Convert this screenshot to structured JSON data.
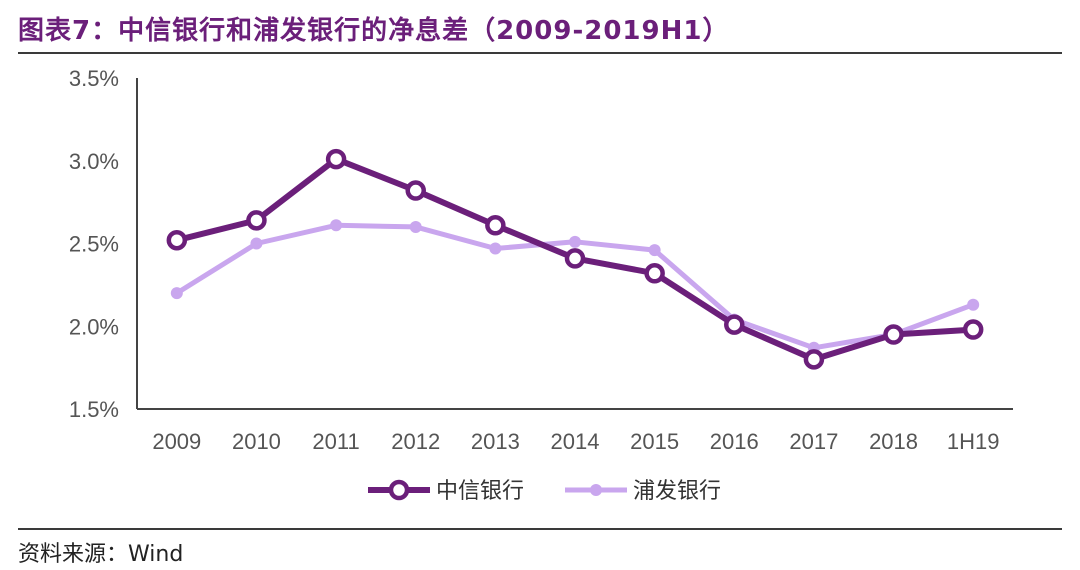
{
  "title": "图表7：中信银行和浦发银行的净息差（2009-2019H1）",
  "source": "资料来源：Wind",
  "colors": {
    "series1": "#6b1f7a",
    "series2": "#c9a6ee",
    "axis": "#444444",
    "title": "#6b1f7a"
  },
  "chart_data": {
    "type": "line",
    "title": "",
    "xlabel": "",
    "ylabel": "",
    "categories": [
      "2009",
      "2010",
      "2011",
      "2012",
      "2013",
      "2014",
      "2015",
      "2016",
      "2017",
      "2018",
      "1H19"
    ],
    "yticks": [
      "1.5%",
      "2.0%",
      "2.5%",
      "3.0%",
      "3.5%"
    ],
    "ylim": [
      1.5,
      3.5
    ],
    "grid": false,
    "legend": "bottom",
    "series": [
      {
        "name": "中信银行",
        "values": [
          2.52,
          2.64,
          3.01,
          2.82,
          2.61,
          2.41,
          2.32,
          2.01,
          1.8,
          1.95,
          1.98
        ]
      },
      {
        "name": "浦发银行",
        "values": [
          2.2,
          2.5,
          2.61,
          2.6,
          2.47,
          2.51,
          2.46,
          2.04,
          1.87,
          1.95,
          2.13
        ]
      }
    ]
  }
}
